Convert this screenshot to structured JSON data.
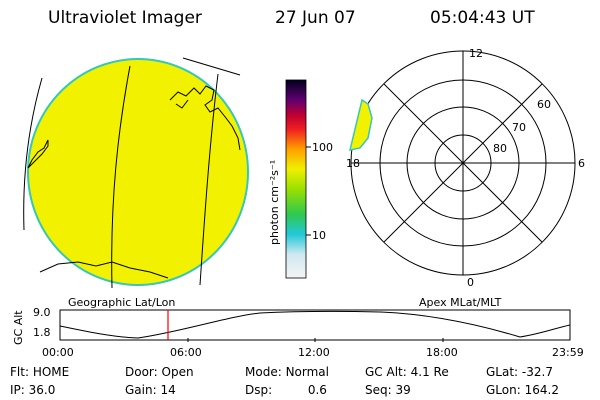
{
  "header": {
    "title": "Ultraviolet Imager",
    "date": "27 Jun 07",
    "time": "05:04:43 UT"
  },
  "colorbar": {
    "unit_label": "photon cm⁻²s⁻¹",
    "ticks": [
      "100",
      "10"
    ]
  },
  "panels": {
    "geo_label": "Geographic Lat/Lon",
    "apex_label": "Apex MLat/MLT"
  },
  "polar": {
    "mlt_labels": [
      "12",
      "18",
      "6",
      "0"
    ],
    "lat_labels": [
      "60",
      "70",
      "80"
    ]
  },
  "altitude_plot": {
    "ylabel": "GC Alt",
    "yticks": [
      "9.0",
      "1.8"
    ],
    "xticks": [
      "00:00",
      "06:00",
      "12:00",
      "18:00",
      "23:59"
    ],
    "current_time_marker": "05:04"
  },
  "status": {
    "flt_label": "Flt:",
    "flt_value": "HOME",
    "ip_label": "IP:",
    "ip_value": "36.0",
    "door_label": "Door:",
    "door_value": "Open",
    "gain_label": "Gain:",
    "gain_value": "14",
    "mode_label": "Mode:",
    "mode_value": "Normal",
    "dsp_label": "Dsp:",
    "dsp_value": "0.6",
    "gcalt_label": "GC Alt:",
    "gcalt_value": "4.1 Re",
    "seq_label": "Seq:",
    "seq_value": "39",
    "glat_label": "GLat:",
    "glat_value": "-32.7",
    "glon_label": "GLon:",
    "glon_value": "164.2"
  },
  "colors": {
    "disk_fill": "#f2f200",
    "disk_edge": "#33c8b8",
    "marker": "#ff0000"
  }
}
